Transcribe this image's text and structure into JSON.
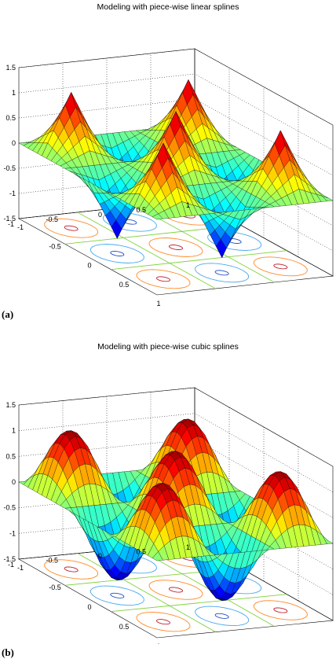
{
  "panels": [
    {
      "label": "(a)",
      "title": "Modeling with piece-wise linear splines"
    },
    {
      "label": "(b)",
      "title": "Modeling with piece-wise cubic splines"
    }
  ],
  "chart_data": [
    {
      "type": "surface",
      "title": "Modeling with piece-wise linear splines",
      "interpolation": "piece-wise linear spline",
      "colormap": "jet",
      "xlim": [
        -1,
        1
      ],
      "ylim": [
        -1,
        1
      ],
      "zlim": [
        -1.5,
        1.5
      ],
      "xticks": [
        "-1",
        "-0.5",
        "0",
        "0.5",
        "1"
      ],
      "yticks": [
        "-1",
        "-0.5",
        "0",
        "0.5",
        "1"
      ],
      "zticks": [
        "-1.5",
        "-1",
        "-0.5",
        "0",
        "0.5",
        "1",
        "1.5"
      ],
      "grid": true,
      "contour_projection": true
    },
    {
      "type": "surface",
      "title": "Modeling with piece-wise cubic splines",
      "interpolation": "piece-wise cubic spline",
      "colormap": "jet",
      "xlim": [
        -1,
        1
      ],
      "ylim": [
        -1,
        1
      ],
      "zlim": [
        -1.5,
        1.5
      ],
      "xticks": [
        "-1",
        "-0.5",
        "0",
        "0.5",
        "1"
      ],
      "yticks": [
        "-1",
        "-0.5",
        "0",
        "0.5",
        "1"
      ],
      "zticks": [
        "-1.5",
        "-1",
        "-0.5",
        "0",
        "0.5",
        "1",
        "1.5"
      ],
      "grid": true,
      "contour_projection": true
    }
  ]
}
